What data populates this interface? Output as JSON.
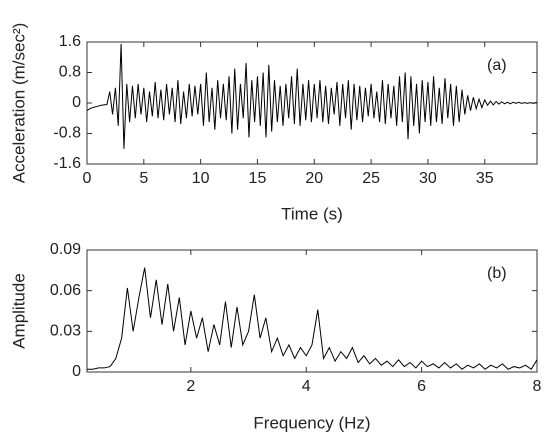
{
  "chart_data": [
    {
      "type": "line",
      "annotation": "(a)",
      "xlabel": "Time (s)",
      "ylabel": "Acceleration (m/sec²)",
      "xlim": [
        0,
        39.6
      ],
      "xticks": [
        0,
        5,
        10,
        15,
        20,
        25,
        30,
        35
      ],
      "ylim": [
        -1.6,
        1.6
      ],
      "yticks": [
        -1.6,
        -0.8,
        0,
        0.8,
        1.6
      ],
      "x": [
        0,
        0.25,
        0.5,
        0.75,
        1,
        1.25,
        1.5,
        1.75,
        2,
        2.25,
        2.5,
        2.75,
        3,
        3.25,
        3.5,
        3.75,
        4,
        4.25,
        4.5,
        4.75,
        5,
        5.25,
        5.5,
        5.75,
        6,
        6.25,
        6.5,
        6.75,
        7,
        7.25,
        7.5,
        7.75,
        8,
        8.25,
        8.5,
        8.75,
        9,
        9.25,
        9.5,
        9.75,
        10,
        10.25,
        10.5,
        10.75,
        11,
        11.25,
        11.5,
        11.75,
        12,
        12.25,
        12.5,
        12.75,
        13,
        13.25,
        13.5,
        13.75,
        14,
        14.25,
        14.5,
        14.75,
        15,
        15.25,
        15.5,
        15.75,
        16,
        16.25,
        16.5,
        16.75,
        17,
        17.25,
        17.5,
        17.75,
        18,
        18.25,
        18.5,
        18.75,
        19,
        19.25,
        19.5,
        19.75,
        20,
        20.25,
        20.5,
        20.75,
        21,
        21.25,
        21.5,
        21.75,
        22,
        22.25,
        22.5,
        22.75,
        23,
        23.25,
        23.5,
        23.75,
        24,
        24.25,
        24.5,
        24.75,
        25,
        25.25,
        25.5,
        25.75,
        26,
        26.25,
        26.5,
        26.75,
        27,
        27.25,
        27.5,
        27.75,
        28,
        28.25,
        28.5,
        28.75,
        29,
        29.25,
        29.5,
        29.75,
        30,
        30.25,
        30.5,
        30.75,
        31,
        31.25,
        31.5,
        31.75,
        32,
        32.25,
        32.5,
        32.75,
        33,
        33.25,
        33.5,
        33.75,
        34,
        34.25,
        34.5,
        34.75,
        35,
        35.25,
        35.5,
        35.75,
        36,
        36.25,
        36.5,
        36.75,
        37,
        37.25,
        37.5,
        37.75,
        38,
        38.25,
        38.5,
        38.75,
        39,
        39.25,
        39.5,
        39.75
      ],
      "series": [
        {
          "color": "#000000",
          "values": [
            -0.2,
            -0.15,
            -0.12,
            -0.1,
            -0.08,
            -0.06,
            -0.05,
            -0.04,
            0.3,
            -0.3,
            0.4,
            -0.6,
            1.55,
            -1.2,
            0.5,
            -0.5,
            0.45,
            -0.4,
            0.5,
            -0.3,
            0.4,
            -0.5,
            0.3,
            -0.35,
            0.55,
            -0.4,
            0.35,
            -0.45,
            0.5,
            -0.3,
            0.4,
            -0.5,
            0.6,
            -0.55,
            0.3,
            -0.4,
            0.5,
            -0.35,
            0.45,
            -0.3,
            0.5,
            -0.6,
            0.8,
            -0.5,
            0.4,
            -0.7,
            0.6,
            -0.4,
            0.5,
            -0.45,
            0.7,
            -0.8,
            0.9,
            -0.7,
            0.5,
            -0.4,
            1.05,
            -0.9,
            0.6,
            -0.5,
            0.7,
            -0.6,
            0.8,
            -0.9,
            1.0,
            -0.75,
            0.6,
            -0.5,
            0.45,
            -0.6,
            0.5,
            -0.4,
            0.7,
            -0.55,
            0.9,
            -0.6,
            0.5,
            -0.45,
            0.6,
            -0.5,
            0.5,
            -0.4,
            0.6,
            -0.5,
            0.45,
            -0.55,
            0.4,
            -0.3,
            0.55,
            -0.6,
            0.5,
            -0.4,
            0.6,
            -0.7,
            0.5,
            -0.45,
            0.45,
            -0.5,
            0.4,
            -0.35,
            0.5,
            -0.4,
            0.3,
            -0.5,
            0.6,
            -0.55,
            0.5,
            -0.4,
            0.45,
            -0.6,
            0.7,
            -0.5,
            0.8,
            -0.95,
            0.7,
            -0.6,
            0.5,
            -0.8,
            0.6,
            -0.5,
            0.55,
            -0.6,
            0.7,
            -0.5,
            0.4,
            -0.55,
            0.65,
            -0.4,
            0.5,
            -0.6,
            0.45,
            -0.5,
            0.35,
            -0.3,
            0.2,
            -0.2,
            0.15,
            -0.15,
            0.1,
            -0.12,
            0.08,
            -0.06,
            0.05,
            -0.05,
            0.04,
            -0.03,
            0.03,
            -0.02,
            0.02,
            -0.02,
            0.02,
            -0.01,
            0.02,
            -0.01,
            0.01,
            -0.01,
            0.01,
            -0.01,
            0.01,
            0
          ]
        }
      ]
    },
    {
      "type": "line",
      "annotation": "(b)",
      "xlabel": "Frequency (Hz)",
      "ylabel": "Amplitude",
      "xlim": [
        0.2,
        8
      ],
      "xticks": [
        2,
        4,
        6,
        8
      ],
      "ylim": [
        0,
        0.09
      ],
      "yticks": [
        0,
        0.03,
        0.06,
        0.09
      ],
      "x": [
        0.2,
        0.3,
        0.4,
        0.5,
        0.6,
        0.7,
        0.8,
        0.9,
        1.0,
        1.1,
        1.2,
        1.3,
        1.4,
        1.5,
        1.6,
        1.7,
        1.8,
        1.9,
        2.0,
        2.1,
        2.2,
        2.3,
        2.4,
        2.5,
        2.6,
        2.7,
        2.8,
        2.9,
        3.0,
        3.1,
        3.2,
        3.3,
        3.4,
        3.5,
        3.6,
        3.7,
        3.8,
        3.9,
        4.0,
        4.1,
        4.2,
        4.3,
        4.4,
        4.5,
        4.6,
        4.7,
        4.8,
        4.9,
        5.0,
        5.1,
        5.2,
        5.3,
        5.4,
        5.5,
        5.6,
        5.7,
        5.8,
        5.9,
        6.0,
        6.1,
        6.2,
        6.3,
        6.4,
        6.5,
        6.6,
        6.7,
        6.8,
        6.9,
        7.0,
        7.1,
        7.2,
        7.3,
        7.4,
        7.5,
        7.6,
        7.7,
        7.8,
        7.9,
        8.0
      ],
      "series": [
        {
          "color": "#000000",
          "values": [
            0.002,
            0.002,
            0.003,
            0.003,
            0.004,
            0.01,
            0.025,
            0.062,
            0.03,
            0.055,
            0.077,
            0.04,
            0.068,
            0.035,
            0.065,
            0.03,
            0.055,
            0.02,
            0.045,
            0.025,
            0.04,
            0.015,
            0.035,
            0.02,
            0.052,
            0.018,
            0.048,
            0.02,
            0.03,
            0.057,
            0.025,
            0.04,
            0.015,
            0.025,
            0.012,
            0.02,
            0.01,
            0.018,
            0.012,
            0.02,
            0.046,
            0.01,
            0.018,
            0.008,
            0.015,
            0.01,
            0.018,
            0.007,
            0.012,
            0.006,
            0.01,
            0.005,
            0.008,
            0.004,
            0.009,
            0.004,
            0.007,
            0.003,
            0.008,
            0.004,
            0.006,
            0.003,
            0.007,
            0.003,
            0.006,
            0.002,
            0.005,
            0.003,
            0.006,
            0.002,
            0.005,
            0.003,
            0.006,
            0.002,
            0.004,
            0.003,
            0.005,
            0.002,
            0.009
          ]
        }
      ]
    }
  ]
}
